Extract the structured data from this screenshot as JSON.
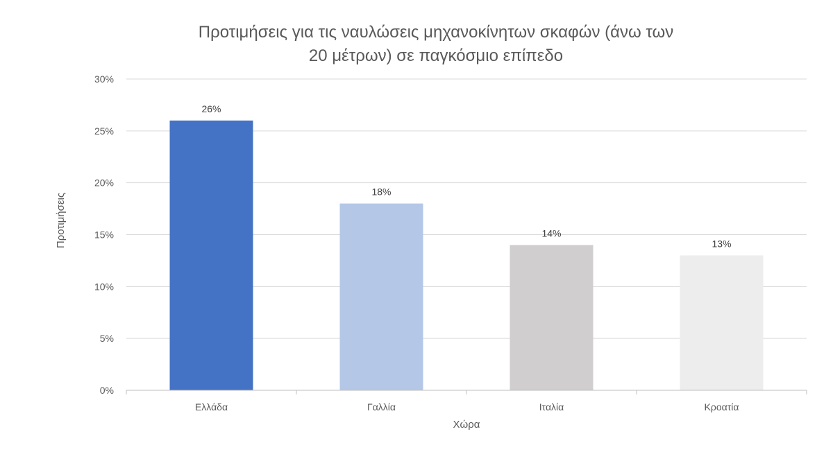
{
  "chart_data": {
    "type": "bar",
    "title_lines": [
      "Προτιμήσεις για τις ναυλώσεις μηχανοκίνητων σκαφών (άνω των",
      "20 μέτρων) σε παγκόσμιο επίπεδο"
    ],
    "xlabel": "Χώρα",
    "ylabel": "Προτιμήσεις",
    "categories": [
      "Ελλάδα",
      "Γαλλία",
      "Ιταλία",
      "Κροατία"
    ],
    "values": [
      26,
      18,
      14,
      13
    ],
    "data_labels": [
      "26%",
      "18%",
      "14%",
      "13%"
    ],
    "bar_colors": [
      "#4472C4",
      "#B4C7E7",
      "#D0CECE",
      "#EDEDED"
    ],
    "ylim": [
      0,
      30
    ],
    "yticks": [
      0,
      5,
      10,
      15,
      20,
      25,
      30
    ],
    "ytick_labels": [
      "0%",
      "5%",
      "10%",
      "15%",
      "20%",
      "25%",
      "30%"
    ],
    "grid": true,
    "legend": "none"
  }
}
